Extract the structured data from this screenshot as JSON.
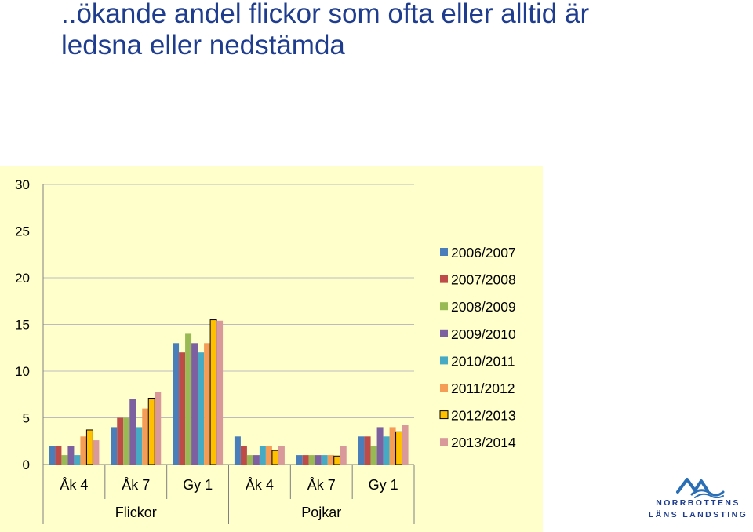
{
  "slide": {
    "title_line1": "..ökande andel flickor som ofta eller alltid är",
    "title_line2": "ledsna eller nedstämda"
  },
  "logo": {
    "line1": "NORRBOTTENS",
    "line2": "LÄNS LANDSTING",
    "color": "#1f3d8f"
  },
  "chart_data": {
    "type": "bar",
    "categories": [
      "Åk 4",
      "Åk 7",
      "Gy 1",
      "Åk 4",
      "Åk 7",
      "Gy 1"
    ],
    "groups": [
      {
        "label": "Flickor",
        "span": [
          0,
          2
        ]
      },
      {
        "label": "Pojkar",
        "span": [
          3,
          5
        ]
      }
    ],
    "series": [
      {
        "name": "2006/2007",
        "color": "#4a7ebb",
        "values": [
          2,
          4,
          13,
          3,
          1,
          3
        ]
      },
      {
        "name": "2007/2008",
        "color": "#be4b48",
        "values": [
          2,
          5,
          12,
          2,
          1,
          3
        ]
      },
      {
        "name": "2008/2009",
        "color": "#98b954",
        "values": [
          1,
          5,
          14,
          1,
          1,
          2
        ]
      },
      {
        "name": "2009/2010",
        "color": "#7d60a0",
        "values": [
          2,
          7,
          13,
          1,
          1,
          4
        ]
      },
      {
        "name": "2010/2011",
        "color": "#46aac5",
        "values": [
          1,
          4,
          12,
          2,
          1,
          3
        ]
      },
      {
        "name": "2011/2012",
        "color": "#f59d56",
        "values": [
          3,
          6,
          13,
          2,
          1,
          4
        ]
      },
      {
        "name": "2012/2013",
        "color": "#ffc000",
        "outline": "#000000",
        "values": [
          3.7,
          7.1,
          15.5,
          1.5,
          0.9,
          3.5
        ]
      },
      {
        "name": "2013/2014",
        "color": "#d9999b",
        "values": [
          2.6,
          7.8,
          15.4,
          2,
          2,
          4.2
        ]
      }
    ],
    "ylim": [
      0,
      30
    ],
    "yticks": [
      "0",
      "5",
      "10",
      "15",
      "20",
      "25",
      "30"
    ],
    "grid": true,
    "legend": "right",
    "background": "#ffffcc"
  }
}
